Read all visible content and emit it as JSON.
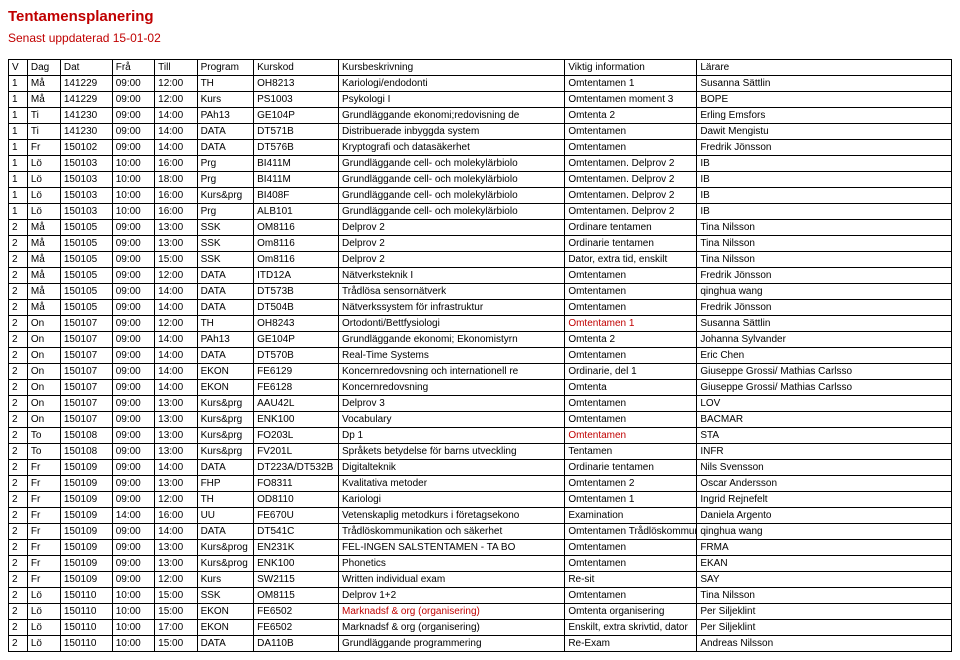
{
  "title": "Tentamensplanering",
  "subtitle": "Senast uppdaterad 15-01-02",
  "columns": [
    "V",
    "Dag",
    "Dat",
    "Frå",
    "Till",
    "Program",
    "Kurskod",
    "Kursbeskrivning",
    "Viktig information",
    "Lärare"
  ],
  "col_widths": [
    "2%",
    "3.5%",
    "5.5%",
    "4.5%",
    "4.5%",
    "6%",
    "9%",
    "24%",
    "14%",
    "27%"
  ],
  "red_cells": [
    [
      15,
      8
    ],
    [
      22,
      8
    ],
    [
      33,
      7
    ],
    [
      37,
      8
    ]
  ],
  "rows": [
    [
      "1",
      "Må",
      "141229",
      "09:00",
      "12:00",
      "TH",
      "OH8213",
      "Kariologi/endodonti",
      "Omtentamen 1",
      "Susanna Sättlin"
    ],
    [
      "1",
      "Må",
      "141229",
      "09:00",
      "12:00",
      "Kurs",
      "PS1003",
      "Psykologi I",
      "Omtentamen moment 3",
      "BOPE"
    ],
    [
      "1",
      "Ti",
      "141230",
      "09:00",
      "14:00",
      "PAh13",
      "GE104P",
      "Grundläggande ekonomi;redovisning de",
      "Omtenta 2",
      "Erling Emsfors"
    ],
    [
      "1",
      "Ti",
      "141230",
      "09:00",
      "14:00",
      "DATA",
      "DT571B",
      "Distribuerade inbyggda system",
      "Omtentamen",
      "Dawit Mengistu"
    ],
    [
      "1",
      "Fr",
      "150102",
      "09:00",
      "14:00",
      "DATA",
      "DT576B",
      "Kryptografi och datasäkerhet",
      "Omtentamen",
      "Fredrik Jönsson"
    ],
    [
      "1",
      "Lö",
      "150103",
      "10:00",
      "16:00",
      "Prg",
      "BI411M",
      "Grundläggande cell- och molekylärbiolo",
      "Omtentamen. Delprov 2",
      "IB"
    ],
    [
      "1",
      "Lö",
      "150103",
      "10:00",
      "18:00",
      "Prg",
      "BI411M",
      "Grundläggande cell- och molekylärbiolo",
      "Omtentamen. Delprov 2",
      "IB"
    ],
    [
      "1",
      "Lö",
      "150103",
      "10:00",
      "16:00",
      "Kurs&prg",
      "BI408F",
      "Grundläggande cell- och molekylärbiolo",
      "Omtentamen. Delprov 2",
      "IB"
    ],
    [
      "1",
      "Lö",
      "150103",
      "10:00",
      "16:00",
      "Prg",
      "ALB101",
      "Grundläggande cell- och molekylärbiolo",
      "Omtentamen. Delprov 2",
      "IB"
    ],
    [
      "2",
      "Må",
      "150105",
      "09:00",
      "13:00",
      "SSK",
      "OM8116",
      "Delprov 2",
      "Ordinare tentamen",
      "Tina Nilsson"
    ],
    [
      "2",
      "Må",
      "150105",
      "09:00",
      "13:00",
      "SSK",
      "Om8116",
      "Delprov 2",
      "Ordinarie tentamen",
      "Tina Nilsson"
    ],
    [
      "2",
      "Må",
      "150105",
      "09:00",
      "15:00",
      "SSK",
      "Om8116",
      "Delprov 2",
      "Dator, extra tid, enskilt",
      "Tina Nilsson"
    ],
    [
      "2",
      "Må",
      "150105",
      "09:00",
      "12:00",
      "DATA",
      "ITD12A",
      "Nätverksteknik I",
      "Omtentamen",
      "Fredrik Jönsson"
    ],
    [
      "2",
      "Må",
      "150105",
      "09:00",
      "14:00",
      "DATA",
      "DT573B",
      "Trådlösa sensornätverk",
      "Omtentamen",
      "qinghua wang"
    ],
    [
      "2",
      "Må",
      "150105",
      "09:00",
      "14:00",
      "DATA",
      "DT504B",
      "Nätverkssystem för infrastruktur",
      "Omtentamen",
      "Fredrik Jönsson"
    ],
    [
      "2",
      "On",
      "150107",
      "09:00",
      "12:00",
      "TH",
      "OH8243",
      "Ortodonti/Bettfysiologi",
      "Omtentamen 1",
      "Susanna Sättlin"
    ],
    [
      "2",
      "On",
      "150107",
      "09:00",
      "14:00",
      "PAh13",
      "GE104P",
      "Grundläggande ekonomi; Ekonomistyrn",
      "Omtenta 2",
      "Johanna Sylvander"
    ],
    [
      "2",
      "On",
      "150107",
      "09:00",
      "14:00",
      "DATA",
      "DT570B",
      "Real-Time Systems",
      "Omtentamen",
      "Eric Chen"
    ],
    [
      "2",
      "On",
      "150107",
      "09:00",
      "14:00",
      "EKON",
      "FE6129",
      "Koncernredovsning och internationell re",
      "Ordinarie, del 1",
      "Giuseppe Grossi/ Mathias Carlsso"
    ],
    [
      "2",
      "On",
      "150107",
      "09:00",
      "14:00",
      "EKON",
      "FE6128",
      "Koncernredovsning",
      "Omtenta",
      "Giuseppe Grossi/ Mathias Carlsso"
    ],
    [
      "2",
      "On",
      "150107",
      "09:00",
      "13:00",
      "Kurs&prg",
      "AAU42L",
      "Delprov 3",
      "Omtentamen",
      "LOV"
    ],
    [
      "2",
      "On",
      "150107",
      "09:00",
      "13:00",
      "Kurs&prg",
      "ENK100",
      "Vocabulary",
      "Omtentamen",
      "BACMAR"
    ],
    [
      "2",
      "To",
      "150108",
      "09:00",
      "13:00",
      "Kurs&prg",
      "FO203L",
      "Dp 1",
      "Omtentamen",
      "STA"
    ],
    [
      "2",
      "To",
      "150108",
      "09:00",
      "13:00",
      "Kurs&prg",
      "FV201L",
      "Språkets betydelse för barns utveckling",
      "Tentamen",
      "INFR"
    ],
    [
      "2",
      "Fr",
      "150109",
      "09:00",
      "14:00",
      "DATA",
      "DT223A/DT532B",
      "Digitalteknik",
      "Ordinarie tentamen",
      "Nils Svensson"
    ],
    [
      "2",
      "Fr",
      "150109",
      "09:00",
      "13:00",
      "FHP",
      "FO8311",
      "Kvalitativa metoder",
      "Omtentamen 2",
      "Oscar Andersson"
    ],
    [
      "2",
      "Fr",
      "150109",
      "09:00",
      "12:00",
      "TH",
      "OD8110",
      "Kariologi",
      "Omtentamen 1",
      "Ingrid Rejnefelt"
    ],
    [
      "2",
      "Fr",
      "150109",
      "14:00",
      "16:00",
      "UU",
      "FE670U",
      "Vetenskaplig metodkurs i företagsekono",
      "Examination",
      "Daniela Argento"
    ],
    [
      "2",
      "Fr",
      "150109",
      "09:00",
      "14:00",
      "DATA",
      "DT541C",
      "Trådlöskommunikation och säkerhet",
      "Omtentamen Trådlöskommuni",
      "qinghua wang"
    ],
    [
      "2",
      "Fr",
      "150109",
      "09:00",
      "13:00",
      "Kurs&prog",
      "EN231K",
      " FEL-INGEN SALSTENTAMEN - TA BO",
      "Omtentamen",
      "FRMA"
    ],
    [
      "2",
      "Fr",
      "150109",
      "09:00",
      "13:00",
      "Kurs&prog",
      "ENK100",
      "Phonetics",
      "Omtentamen",
      "EKAN"
    ],
    [
      "2",
      "Fr",
      "150109",
      "09:00",
      "12:00",
      "Kurs",
      "SW2115",
      "Written individual exam",
      "Re-sit",
      "SAY"
    ],
    [
      "2",
      "Lö",
      "150110",
      "10:00",
      "15:00",
      "SSK",
      "OM8115",
      "Delprov 1+2",
      "Omtentamen",
      "Tina Nilsson"
    ],
    [
      "2",
      "Lö",
      "150110",
      "10:00",
      "15:00",
      "EKON",
      "FE6502",
      "Marknadsf & org (organisering)",
      "Omtenta organisering",
      "Per Siljeklint"
    ],
    [
      "2",
      "Lö",
      "150110",
      "10:00",
      "17:00",
      "EKON",
      "FE6502",
      "Marknadsf & org (organisering)",
      "Enskilt, extra skrivtid, dator",
      "Per Siljeklint"
    ],
    [
      "2",
      "Lö",
      "150110",
      "10:00",
      "15:00",
      "DATA",
      "DA110B",
      "Grundläggande programmering",
      "Re-Exam",
      "Andreas Nilsson"
    ]
  ]
}
